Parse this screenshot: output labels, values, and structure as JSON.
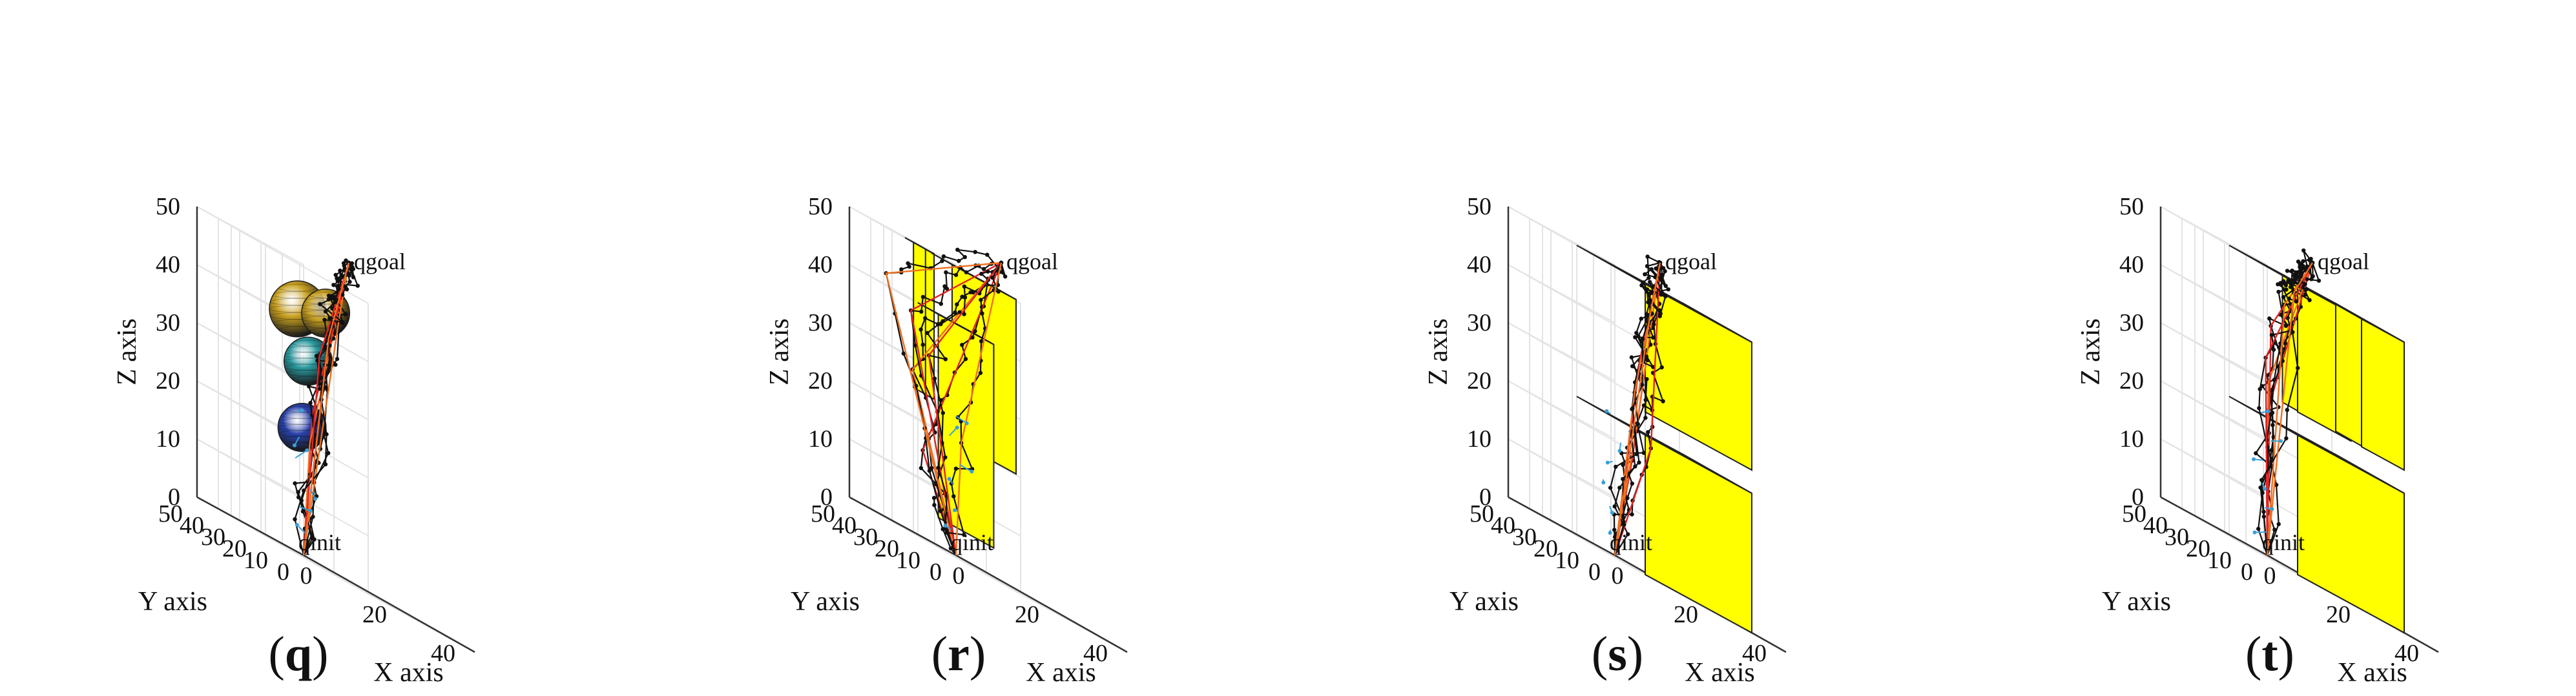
{
  "colors": {
    "path": "#111111",
    "node": "#111111",
    "edge_red": "#e02424",
    "edge_orange": "#f07020",
    "branch_blue": "#3aa0d8",
    "obstacle_yellow": "#ffff00",
    "grid": "#e4e4e4",
    "axis": "#333333",
    "sphere_gold": "#c8a020",
    "sphere_teal": "#2a9aa0",
    "sphere_blue": "#2840a8"
  },
  "chart_data": [
    {
      "type": "3d-path",
      "panel_label": "(q)",
      "label_prefix": "(",
      "label_letter": "q",
      "label_suffix": ")",
      "xlabel": "X axis",
      "ylabel": "Y axis",
      "zlabel": "Z axis",
      "xlim": [
        0,
        50
      ],
      "ylim": [
        0,
        50
      ],
      "zlim": [
        0,
        50
      ],
      "xticks": [
        "0",
        "20",
        "40"
      ],
      "yticks": [
        "0",
        "10",
        "20",
        "30",
        "40",
        "50"
      ],
      "zticks": [
        "0",
        "10",
        "20",
        "30",
        "40",
        "50"
      ],
      "start": {
        "label": "qinit",
        "pos": [
          0,
          0,
          0
        ]
      },
      "goal": {
        "label": "qgoal",
        "pos": [
          35,
          35,
          55
        ]
      },
      "obstacles": [
        {
          "shape": "sphere",
          "center": [
            15,
            27,
            42
          ],
          "radius": 7,
          "color": "sphere_gold"
        },
        {
          "shape": "sphere",
          "center": [
            22,
            25,
            44
          ],
          "radius": 6,
          "color": "sphere_gold"
        },
        {
          "shape": "sphere",
          "center": [
            15,
            22,
            34
          ],
          "radius": 6,
          "color": "sphere_teal"
        },
        {
          "shape": "sphere",
          "center": [
            12,
            20,
            22
          ],
          "radius": 6,
          "color": "sphere_blue"
        }
      ],
      "waypoints": [
        [
          10,
          12,
          25
        ],
        [
          18,
          26,
          20
        ],
        [
          20,
          22,
          35
        ],
        [
          23,
          20,
          45
        ],
        [
          14,
          15,
          36
        ],
        [
          26,
          30,
          40
        ]
      ]
    },
    {
      "type": "3d-path",
      "panel_label": "(r)",
      "label_prefix": "(",
      "label_letter": "r",
      "label_suffix": ")",
      "xlabel": "X axis",
      "ylabel": "Y axis",
      "zlabel": "Z axis",
      "xlim": [
        0,
        50
      ],
      "ylim": [
        0,
        50
      ],
      "zlim": [
        0,
        50
      ],
      "xticks": [
        "0",
        "20",
        "40"
      ],
      "yticks": [
        "0",
        "10",
        "20",
        "30",
        "40",
        "50"
      ],
      "zticks": [
        "0",
        "10",
        "20",
        "30",
        "40",
        "50"
      ],
      "start": {
        "label": "qinit",
        "pos": [
          0,
          0,
          0
        ]
      },
      "goal": {
        "label": "qgoal",
        "pos": [
          35,
          35,
          55
        ]
      },
      "obstacles": [
        {
          "shape": "box",
          "min": [
            10,
            36,
            25
          ],
          "max": [
            16,
            40,
            50
          ]
        },
        {
          "shape": "box",
          "min": [
            24,
            20,
            20
          ],
          "max": [
            30,
            50,
            50
          ]
        },
        {
          "shape": "box",
          "min": [
            10,
            8,
            5
          ],
          "max": [
            16,
            34,
            40
          ]
        }
      ],
      "waypoints": [
        [
          4,
          22,
          15
        ],
        [
          6,
          30,
          28
        ],
        [
          8,
          34,
          38
        ],
        [
          2,
          36,
          42
        ],
        [
          12,
          32,
          32
        ],
        [
          14,
          20,
          20
        ]
      ]
    },
    {
      "type": "3d-path",
      "panel_label": "(s)",
      "label_prefix": "(",
      "label_letter": "s",
      "label_suffix": ")",
      "xlabel": "X axis",
      "ylabel": "Y axis",
      "zlabel": "Z axis",
      "xlim": [
        0,
        50
      ],
      "ylim": [
        0,
        50
      ],
      "zlim": [
        0,
        50
      ],
      "xticks": [
        "0",
        "20",
        "40"
      ],
      "yticks": [
        "0",
        "10",
        "20",
        "30",
        "40",
        "50"
      ],
      "zticks": [
        "0",
        "10",
        "20",
        "30",
        "40",
        "50"
      ],
      "start": {
        "label": "qinit",
        "pos": [
          0,
          0,
          0
        ]
      },
      "goal": {
        "label": "qgoal",
        "pos": [
          35,
          35,
          55
        ]
      },
      "obstacles": [
        {
          "shape": "box",
          "min": [
            20,
            0,
            28
          ],
          "max": [
            40,
            50,
            50
          ]
        },
        {
          "shape": "box",
          "min": [
            20,
            0,
            0
          ],
          "max": [
            40,
            50,
            24
          ]
        }
      ],
      "waypoints": [
        [
          10,
          8,
          18
        ],
        [
          14,
          12,
          25
        ],
        [
          16,
          14,
          36
        ],
        [
          12,
          10,
          30
        ],
        [
          18,
          12,
          22
        ],
        [
          24,
          22,
          45
        ]
      ]
    },
    {
      "type": "3d-path",
      "panel_label": "(t)",
      "label_prefix": "(",
      "label_letter": "t",
      "label_suffix": ")",
      "xlabel": "X axis",
      "ylabel": "Y axis",
      "zlabel": "Z axis",
      "xlim": [
        0,
        50
      ],
      "ylim": [
        0,
        50
      ],
      "zlim": [
        0,
        50
      ],
      "xticks": [
        "0",
        "20",
        "40"
      ],
      "yticks": [
        "0",
        "10",
        "20",
        "30",
        "40",
        "50"
      ],
      "zticks": [
        "0",
        "10",
        "20",
        "30",
        "40",
        "50"
      ],
      "start": {
        "label": "qinit",
        "pos": [
          0,
          0,
          0
        ]
      },
      "goal": {
        "label": "qgoal",
        "pos": [
          35,
          35,
          55
        ]
      },
      "obstacles": [
        {
          "shape": "box",
          "min": [
            20,
            25,
            28
          ],
          "max": [
            40,
            50,
            50
          ]
        },
        {
          "shape": "box",
          "min": [
            20,
            0,
            0
          ],
          "max": [
            40,
            50,
            24
          ]
        },
        {
          "shape": "box",
          "min": [
            20,
            0,
            28
          ],
          "max": [
            40,
            20,
            50
          ]
        }
      ],
      "waypoints": [
        [
          10,
          16,
          25
        ],
        [
          14,
          22,
          30
        ],
        [
          16,
          24,
          40
        ],
        [
          20,
          24,
          45
        ],
        [
          12,
          20,
          34
        ],
        [
          24,
          26,
          48
        ]
      ]
    }
  ]
}
